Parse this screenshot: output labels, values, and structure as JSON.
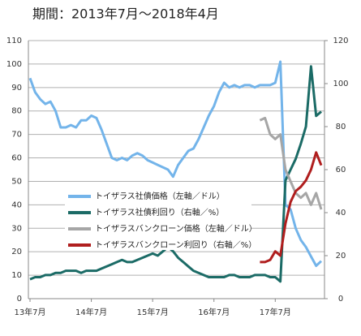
{
  "chart_data": {
    "type": "line",
    "title": "期間：2013年7月～2018年4月",
    "categories": [
      "13年7月",
      null,
      null,
      null,
      null,
      null,
      null,
      null,
      null,
      null,
      null,
      null,
      "14年7月",
      null,
      null,
      null,
      null,
      null,
      null,
      null,
      null,
      null,
      null,
      null,
      "15年7月",
      null,
      null,
      null,
      null,
      null,
      null,
      null,
      null,
      null,
      null,
      null,
      "16年7月",
      null,
      null,
      null,
      null,
      null,
      null,
      null,
      null,
      null,
      null,
      null,
      "17年7月",
      null,
      null,
      null,
      null,
      null,
      null,
      null,
      null,
      null
    ],
    "series": [
      {
        "name": "トイザラス社債価格（左軸／ドル）",
        "color": "#73b4ea",
        "axis": "y",
        "values": [
          94,
          88,
          85,
          83,
          84,
          80,
          73,
          73,
          74,
          73,
          76,
          76,
          78,
          77,
          72,
          66,
          60,
          59,
          60,
          59,
          61,
          62,
          61,
          59,
          58,
          57,
          56,
          55,
          52,
          57,
          60,
          63,
          64,
          68,
          73,
          78,
          82,
          88,
          92,
          90,
          91,
          90,
          91,
          91,
          90,
          91,
          91,
          91,
          92,
          101,
          40,
          38,
          30,
          25,
          22,
          18,
          14,
          16
        ]
      },
      {
        "name": "トイザラス社債利回り（右軸／%）",
        "color": "#1b6b66",
        "axis": "y2",
        "values": [
          9,
          10,
          10,
          11,
          11,
          12,
          12,
          13,
          13,
          13,
          12,
          13,
          13,
          13,
          14,
          15,
          16,
          17,
          18,
          17,
          17,
          18,
          19,
          20,
          21,
          20,
          22,
          24,
          22,
          19,
          17,
          15,
          13,
          12,
          11,
          10,
          10,
          10,
          10,
          11,
          11,
          10,
          10,
          10,
          11,
          11,
          11,
          10,
          10,
          8,
          55,
          60,
          65,
          72,
          80,
          108,
          85,
          87
        ]
      },
      {
        "name": "トイザラスバンクローン価格（左軸／ドル）",
        "color": "#a6a6a6",
        "axis": "y",
        "values": [
          null,
          null,
          null,
          null,
          null,
          null,
          null,
          null,
          null,
          null,
          null,
          null,
          null,
          null,
          null,
          null,
          null,
          null,
          null,
          null,
          null,
          null,
          null,
          null,
          null,
          null,
          null,
          null,
          null,
          null,
          null,
          null,
          null,
          null,
          null,
          null,
          null,
          null,
          null,
          null,
          null,
          null,
          null,
          null,
          null,
          76,
          77,
          70,
          68,
          70,
          55,
          50,
          45,
          43,
          45,
          40,
          45,
          38
        ]
      },
      {
        "name": "トイザラスバンクローン利回り（右軸／%）",
        "color": "#b01e1e",
        "axis": "y2",
        "values": [
          null,
          null,
          null,
          null,
          null,
          null,
          null,
          null,
          null,
          null,
          null,
          null,
          null,
          null,
          null,
          null,
          null,
          null,
          null,
          null,
          null,
          null,
          null,
          null,
          null,
          null,
          null,
          null,
          null,
          null,
          null,
          null,
          null,
          null,
          null,
          null,
          null,
          null,
          null,
          null,
          null,
          null,
          null,
          null,
          null,
          17,
          17,
          18,
          22,
          20,
          35,
          45,
          50,
          52,
          55,
          60,
          68,
          62
        ]
      }
    ],
    "ylim": [
      0,
      110
    ],
    "yticks": [
      0,
      10,
      20,
      30,
      40,
      50,
      60,
      70,
      80,
      90,
      100,
      110
    ],
    "y2lim": [
      0,
      120
    ],
    "y2ticks": [
      0,
      20,
      40,
      60,
      80,
      100,
      120
    ],
    "grid": true
  }
}
